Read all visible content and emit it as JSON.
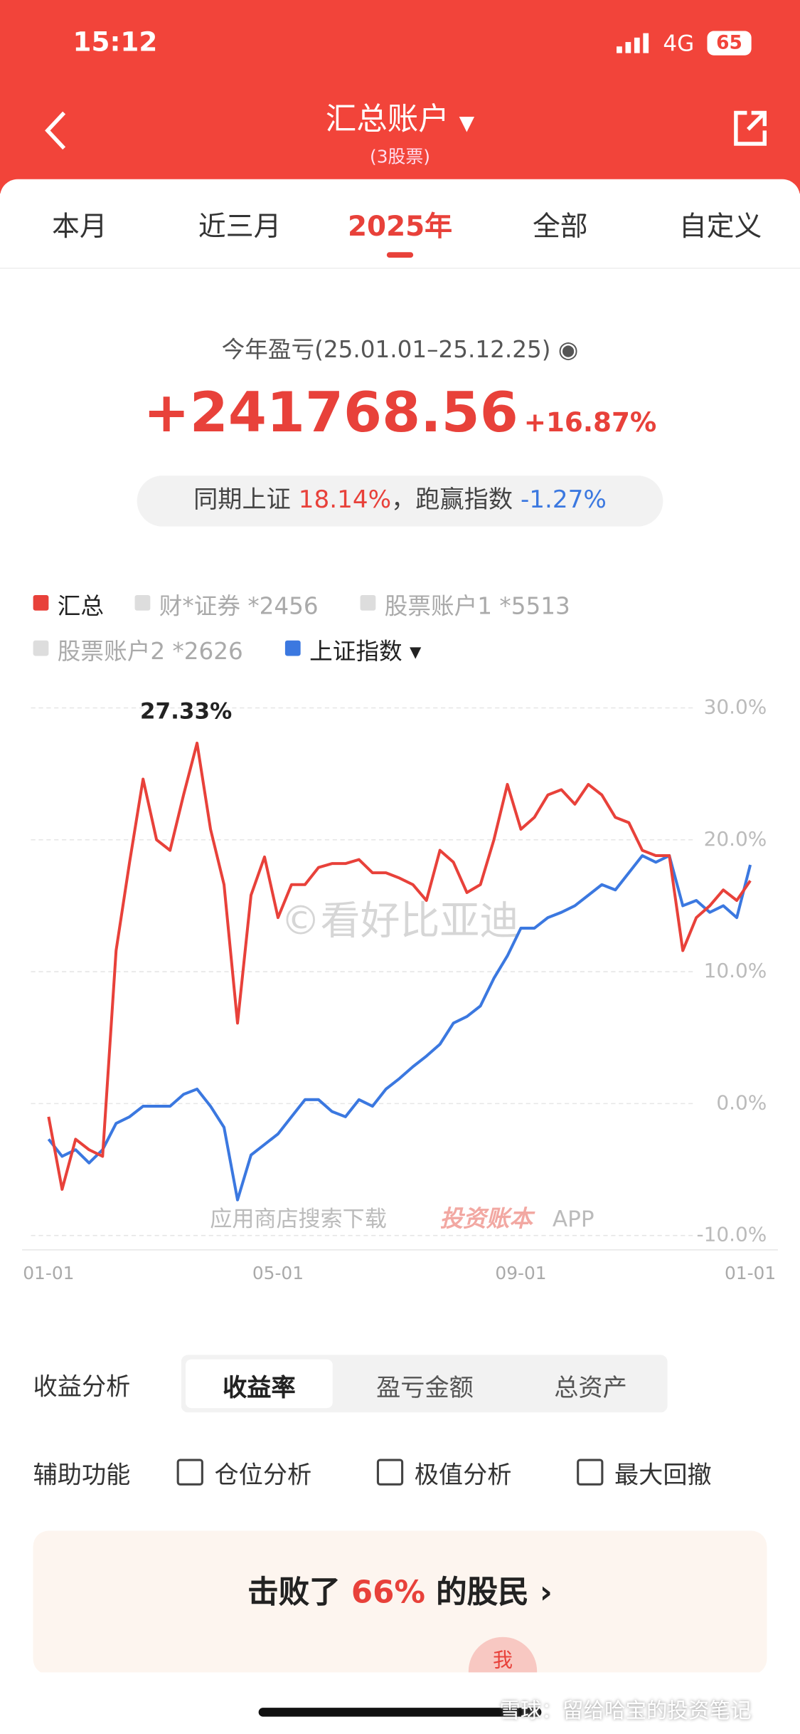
{
  "status_bar": {
    "time": "15:12",
    "network": "4G",
    "battery": "65"
  },
  "header": {
    "title": "汇总账户",
    "subtitle": "(3股票)"
  },
  "tabs": {
    "items": [
      "本月",
      "近三月",
      "2025年",
      "全部",
      "自定义"
    ],
    "active": 2
  },
  "summary": {
    "label": "今年盈亏(25.01.01–25.12.25)",
    "amount": "+241768.56",
    "percent": "+16.87%"
  },
  "comparison": {
    "label": "同期上证",
    "index_return": "18.14%",
    "excess_label": "，跑赢指数",
    "excess_value": "-1.27%"
  },
  "chart_data": {
    "type": "line",
    "categories": [
      "01-01",
      null,
      null,
      null,
      null,
      null,
      null,
      null,
      null,
      null,
      null,
      null,
      null,
      null,
      null,
      null,
      null,
      "05-01",
      null,
      null,
      null,
      null,
      null,
      null,
      null,
      null,
      null,
      null,
      null,
      null,
      null,
      null,
      null,
      null,
      null,
      "09-01",
      null,
      null,
      null,
      null,
      null,
      null,
      null,
      null,
      null,
      null,
      null,
      null,
      null,
      null,
      null,
      null,
      "01-01"
    ],
    "series": [
      {
        "name": "汇总",
        "color": "#e8413a",
        "values": [
          -1.0,
          -6.5,
          -2.7,
          -3.5,
          -4.0,
          11.6,
          18.3,
          24.6,
          20.0,
          19.2,
          23.4,
          27.33,
          20.8,
          16.6,
          6.1,
          15.8,
          18.7,
          14.1,
          16.6,
          16.6,
          17.9,
          18.2,
          18.2,
          18.5,
          17.5,
          17.5,
          17.1,
          16.6,
          15.4,
          19.2,
          18.3,
          16.0,
          16.6,
          20.0,
          24.2,
          20.8,
          21.7,
          23.4,
          23.8,
          22.7,
          24.2,
          23.4,
          21.7,
          21.3,
          19.2,
          18.8,
          18.8,
          11.6,
          14.1,
          15.0,
          16.2,
          15.4,
          16.9
        ]
      },
      {
        "name": "上证指数",
        "color": "#3b78e0",
        "values": [
          -2.7,
          -4.0,
          -3.5,
          -4.5,
          -3.5,
          -1.5,
          -1.0,
          -0.2,
          -0.2,
          -0.2,
          0.7,
          1.1,
          -0.2,
          -1.8,
          -7.3,
          -3.9,
          -3.1,
          -2.3,
          -1.0,
          0.3,
          0.3,
          -0.6,
          -1.0,
          0.3,
          -0.2,
          1.1,
          1.9,
          2.8,
          3.6,
          4.5,
          6.1,
          6.6,
          7.4,
          9.5,
          11.2,
          13.3,
          13.3,
          14.1,
          14.5,
          15.0,
          15.8,
          16.6,
          16.2,
          17.5,
          18.8,
          18.3,
          18.8,
          15.0,
          15.4,
          14.5,
          15.0,
          14.1,
          18.1
        ]
      }
    ],
    "legend_inactive": [
      "财*证券 *2456",
      "股票账户1 *5513",
      "股票账户2 *2626"
    ],
    "annotation": "27.33%",
    "ylim": [
      -10,
      30
    ],
    "yticks": [
      {
        "value": -10,
        "label": "-10.0%"
      },
      {
        "value": 0,
        "label": "0.0%"
      },
      {
        "value": 10,
        "label": "10.0%"
      },
      {
        "value": 20,
        "label": "20.0%"
      },
      {
        "value": 30,
        "label": "30.0%"
      }
    ],
    "grid": true
  },
  "watermark": {
    "text": "©看好比亚迪",
    "download": "应用商店搜索下载",
    "brand": "投资账本",
    "app": "APP"
  },
  "analysis": {
    "label": "收益分析",
    "options": [
      "收益率",
      "盈亏金额",
      "总资产"
    ],
    "selected": 0
  },
  "aux": {
    "label": "辅助功能",
    "options": [
      "仓位分析",
      "极值分析",
      "最大回撤"
    ]
  },
  "banner": {
    "before": "击败了",
    "percent": "66%",
    "after": "的股民",
    "avatar": "我"
  },
  "footer": {
    "credit": "雪球：留给哈宝的投资笔记"
  }
}
